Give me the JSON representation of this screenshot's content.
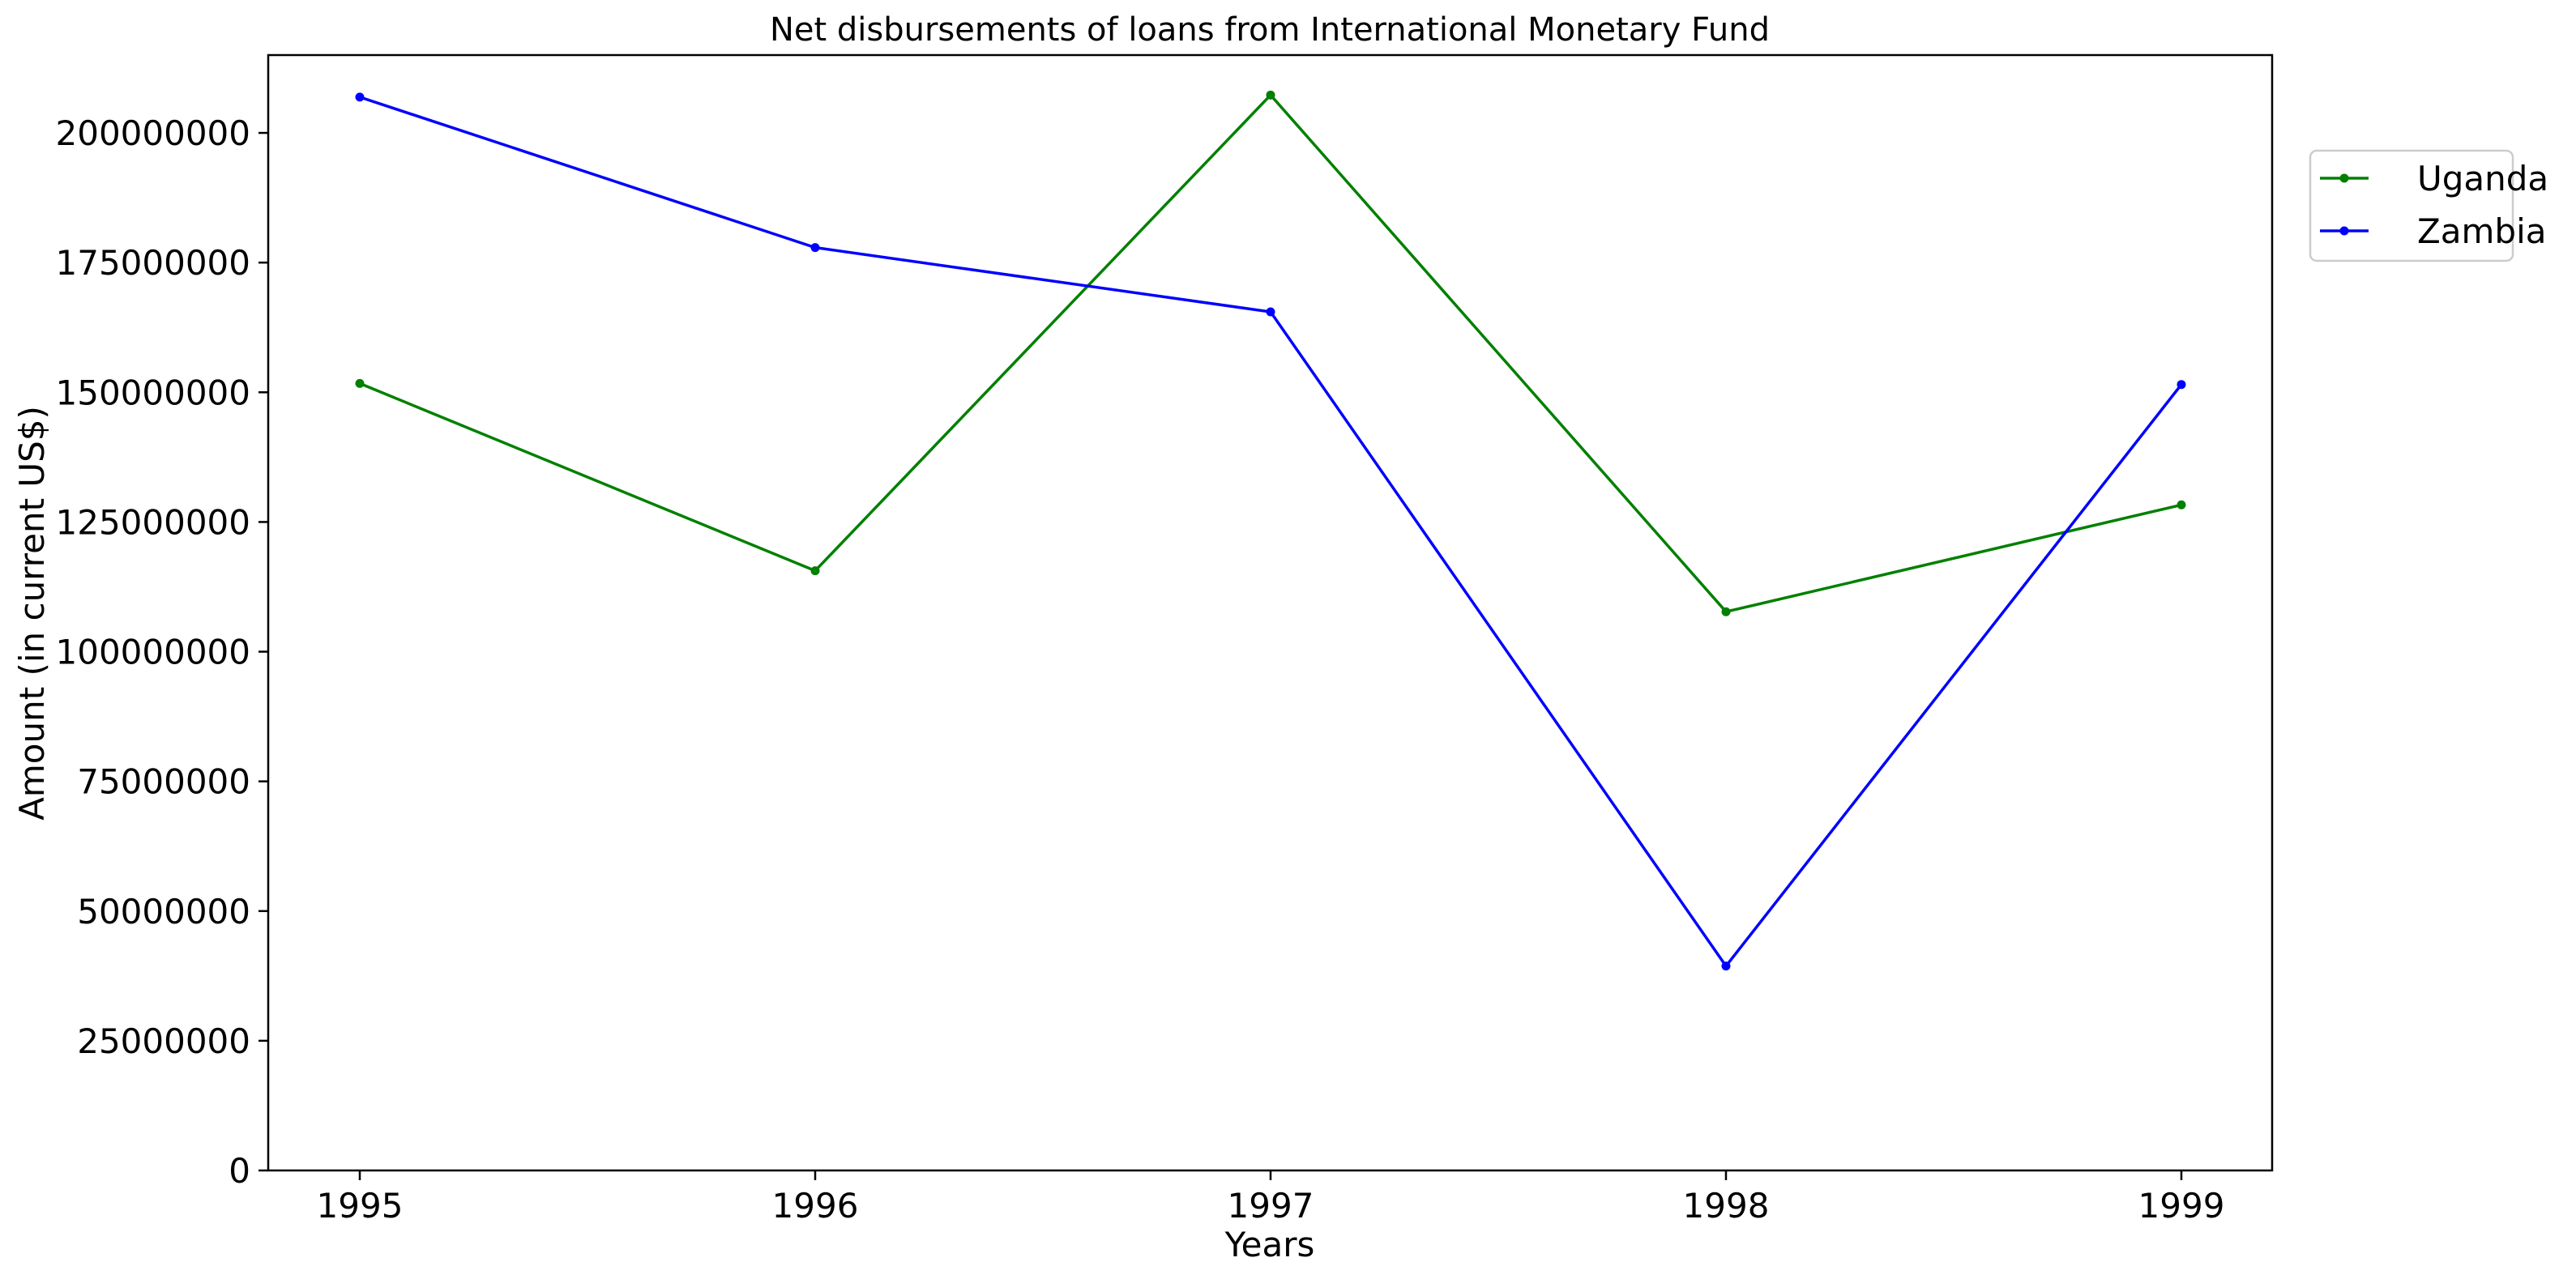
{
  "chart_data": {
    "type": "line",
    "title": "Net disbursements of loans from International Monetary Fund",
    "xlabel": "Years",
    "ylabel": "Amount (in current US$)",
    "x": [
      1995,
      1996,
      1997,
      1998,
      1999
    ],
    "x_tick_labels": [
      "1995",
      "1996",
      "1997",
      "1998",
      "1999"
    ],
    "ylim": [
      0,
      215000000
    ],
    "y_ticks": [
      0,
      25000000,
      50000000,
      75000000,
      100000000,
      125000000,
      150000000,
      175000000,
      200000000
    ],
    "y_tick_labels": [
      "0",
      "25000000",
      "50000000",
      "75000000",
      "100000000",
      "125000000",
      "150000000",
      "175000000",
      "200000000"
    ],
    "grid": false,
    "legend_position": "outside-top-right",
    "series": [
      {
        "name": "Uganda",
        "color": "#008000",
        "values": [
          151700000,
          115600000,
          207300000,
          107700000,
          128300000
        ]
      },
      {
        "name": "Zambia",
        "color": "#0000ff",
        "values": [
          206900000,
          177900000,
          165500000,
          39400000,
          151500000
        ]
      }
    ]
  }
}
